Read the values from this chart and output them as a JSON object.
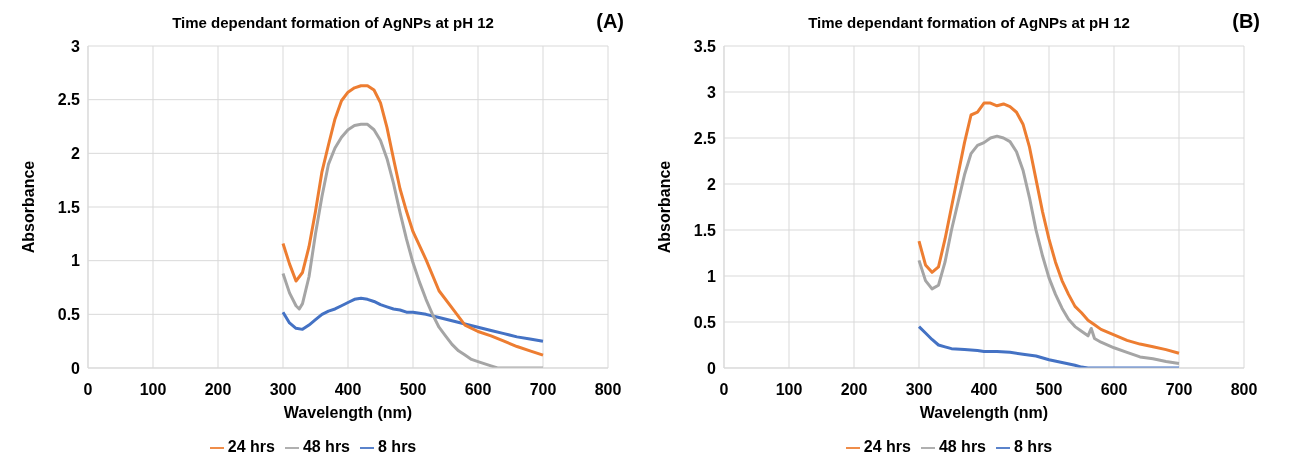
{
  "chart_data": [
    {
      "type": "line",
      "title": "Time dependant formation of AgNPs at pH 12",
      "xlabel": "Wavelength (nm)",
      "ylabel": "Absorbance",
      "annotations": [
        "(A)"
      ],
      "xlim": [
        0,
        800
      ],
      "xticks": [
        0,
        100,
        200,
        300,
        400,
        500,
        600,
        700,
        800
      ],
      "ylim": [
        0,
        3
      ],
      "yticks": [
        0,
        0.5,
        1,
        1.5,
        2,
        2.5,
        3
      ],
      "grid": true,
      "legend": "bottom",
      "marker": "none",
      "line_style": "solid",
      "series": [
        {
          "name": "8 hrs",
          "color": "#4472c4",
          "x": [
            300,
            310,
            320,
            330,
            340,
            350,
            360,
            370,
            380,
            390,
            400,
            410,
            420,
            430,
            440,
            450,
            460,
            470,
            480,
            490,
            500,
            520,
            540,
            560,
            580,
            600,
            620,
            640,
            660,
            680,
            700
          ],
          "values": [
            0.52,
            0.42,
            0.37,
            0.36,
            0.4,
            0.45,
            0.5,
            0.53,
            0.55,
            0.58,
            0.61,
            0.64,
            0.65,
            0.64,
            0.62,
            0.59,
            0.57,
            0.55,
            0.54,
            0.52,
            0.52,
            0.5,
            0.47,
            0.44,
            0.41,
            0.38,
            0.35,
            0.32,
            0.29,
            0.27,
            0.25
          ]
        },
        {
          "name": "24 hrs",
          "color": "#ed7d31",
          "x": [
            300,
            310,
            320,
            330,
            340,
            350,
            360,
            370,
            380,
            390,
            400,
            410,
            420,
            430,
            440,
            450,
            460,
            470,
            480,
            490,
            500,
            520,
            540,
            560,
            580,
            600,
            620,
            640,
            660,
            680,
            700
          ],
          "values": [
            1.16,
            0.97,
            0.81,
            0.89,
            1.13,
            1.46,
            1.83,
            2.08,
            2.32,
            2.49,
            2.57,
            2.61,
            2.63,
            2.63,
            2.59,
            2.47,
            2.24,
            1.95,
            1.67,
            1.46,
            1.27,
            1.01,
            0.72,
            0.56,
            0.4,
            0.34,
            0.3,
            0.25,
            0.2,
            0.16,
            0.12
          ]
        },
        {
          "name": "48 hrs",
          "color": "#a5a5a5",
          "x": [
            300,
            310,
            320,
            325,
            330,
            340,
            350,
            360,
            370,
            380,
            390,
            400,
            410,
            420,
            430,
            440,
            450,
            460,
            470,
            480,
            490,
            500,
            510,
            520,
            530,
            540,
            550,
            560,
            570,
            580,
            590,
            600,
            620,
            630,
            640,
            700
          ],
          "values": [
            0.88,
            0.7,
            0.58,
            0.55,
            0.6,
            0.85,
            1.25,
            1.6,
            1.9,
            2.05,
            2.15,
            2.22,
            2.26,
            2.27,
            2.27,
            2.22,
            2.12,
            1.95,
            1.72,
            1.45,
            1.2,
            0.98,
            0.8,
            0.64,
            0.5,
            0.38,
            0.3,
            0.22,
            0.16,
            0.12,
            0.08,
            0.06,
            0.02,
            0,
            0,
            0
          ]
        }
      ]
    },
    {
      "type": "line",
      "title": "Time dependant formation of AgNPs at pH 12",
      "xlabel": "Wavelength (nm)",
      "ylabel": "Absorbance",
      "annotations": [
        "(B)"
      ],
      "xlim": [
        0,
        800
      ],
      "xticks": [
        0,
        100,
        200,
        300,
        400,
        500,
        600,
        700,
        800
      ],
      "ylim": [
        0,
        3.5
      ],
      "yticks": [
        0,
        0.5,
        1,
        1.5,
        2,
        2.5,
        3,
        3.5
      ],
      "grid": true,
      "legend": "bottom",
      "marker": "none",
      "line_style": "solid",
      "series": [
        {
          "name": "8 hrs",
          "color": "#4472c4",
          "x": [
            300,
            310,
            320,
            330,
            340,
            350,
            370,
            390,
            400,
            420,
            440,
            460,
            480,
            500,
            520,
            540,
            550,
            560,
            600,
            700
          ],
          "values": [
            0.45,
            0.38,
            0.31,
            0.25,
            0.23,
            0.21,
            0.2,
            0.19,
            0.18,
            0.18,
            0.17,
            0.15,
            0.13,
            0.09,
            0.06,
            0.03,
            0.01,
            0,
            0,
            0
          ]
        },
        {
          "name": "24 hrs",
          "color": "#ed7d31",
          "x": [
            300,
            310,
            320,
            330,
            340,
            350,
            360,
            370,
            380,
            390,
            400,
            410,
            420,
            430,
            440,
            450,
            460,
            470,
            480,
            490,
            500,
            510,
            520,
            530,
            540,
            550,
            560,
            570,
            580,
            600,
            620,
            640,
            660,
            680,
            700
          ],
          "values": [
            1.38,
            1.12,
            1.04,
            1.1,
            1.4,
            1.75,
            2.1,
            2.45,
            2.75,
            2.78,
            2.88,
            2.88,
            2.85,
            2.87,
            2.84,
            2.78,
            2.65,
            2.4,
            2.05,
            1.7,
            1.4,
            1.15,
            0.95,
            0.8,
            0.67,
            0.6,
            0.52,
            0.47,
            0.42,
            0.36,
            0.3,
            0.26,
            0.23,
            0.2,
            0.16
          ]
        },
        {
          "name": "48 hrs",
          "color": "#a5a5a5",
          "x": [
            300,
            310,
            320,
            330,
            340,
            350,
            360,
            370,
            380,
            390,
            400,
            410,
            420,
            430,
            440,
            450,
            460,
            470,
            480,
            490,
            500,
            510,
            520,
            530,
            540,
            550,
            560,
            565,
            570,
            580,
            600,
            620,
            640,
            660,
            680,
            700
          ],
          "values": [
            1.17,
            0.95,
            0.86,
            0.9,
            1.15,
            1.5,
            1.8,
            2.1,
            2.33,
            2.42,
            2.45,
            2.5,
            2.52,
            2.5,
            2.46,
            2.35,
            2.15,
            1.85,
            1.5,
            1.22,
            0.98,
            0.8,
            0.65,
            0.53,
            0.45,
            0.4,
            0.35,
            0.43,
            0.32,
            0.28,
            0.22,
            0.17,
            0.12,
            0.1,
            0.07,
            0.05
          ]
        }
      ]
    }
  ]
}
